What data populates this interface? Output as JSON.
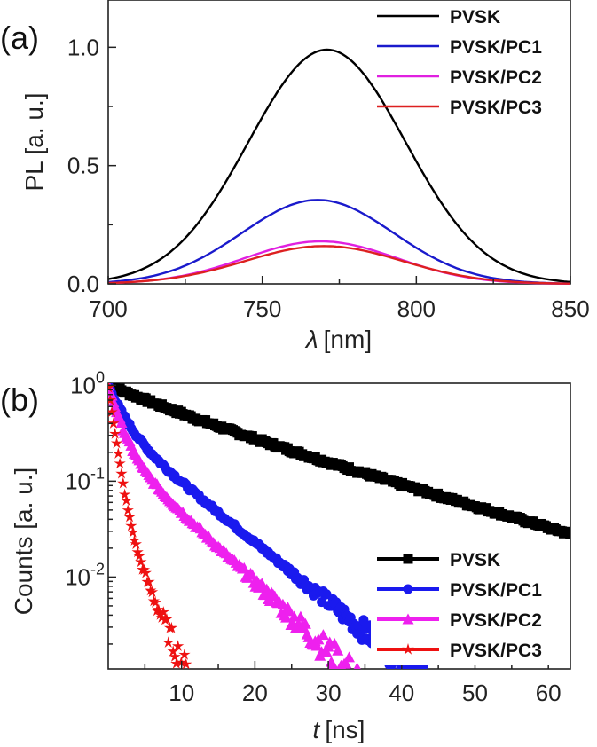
{
  "chart_data": [
    {
      "panel_label": "(a)",
      "type": "line",
      "xlabel_symbol": "λ",
      "xlabel_unit": "[nm]",
      "ylabel": "PL [a. u.]",
      "xlim": [
        700,
        850
      ],
      "ylim": [
        0,
        1.2
      ],
      "xticks": [
        700,
        750,
        800,
        850
      ],
      "yticks": [
        "0.0",
        "0.5",
        "1.0"
      ],
      "ytick_values": [
        0,
        0.5,
        1.0
      ],
      "legend_position": "top-right",
      "series": [
        {
          "name": "PVSK",
          "color": "#000000",
          "peak": 0.99,
          "center": 771,
          "fwhm": 60
        },
        {
          "name": "PVSK/PC1",
          "color": "#1a1acc",
          "peak": 0.355,
          "center": 768,
          "fwhm": 58
        },
        {
          "name": "PVSK/PC2",
          "color": "#e020e0",
          "peak": 0.18,
          "center": 769,
          "fwhm": 58
        },
        {
          "name": "PVSK/PC3",
          "color": "#dd2020",
          "peak": 0.16,
          "center": 770,
          "fwhm": 60
        }
      ]
    },
    {
      "panel_label": "(b)",
      "type": "scatter",
      "yscale": "log",
      "xlabel_symbol": "t",
      "xlabel_unit": "[ns]",
      "ylabel": "Counts [a. u.]",
      "xlim": [
        0,
        63
      ],
      "ylim": [
        0.0011,
        1.05
      ],
      "xticks": [
        10,
        20,
        30,
        40,
        50,
        60
      ],
      "yticks": [
        {
          "base": "10",
          "exp": "0",
          "value": 1
        },
        {
          "base": "10",
          "exp": "-1",
          "value": 0.1
        },
        {
          "base": "10",
          "exp": "-2",
          "value": 0.01
        }
      ],
      "legend_position": "bottom-right",
      "series": [
        {
          "name": "PVSK",
          "color": "#000000",
          "marker": "square",
          "t_end": 63,
          "tau1": 9,
          "tau2": 20,
          "frac1": 0.35
        },
        {
          "name": "PVSK/PC1",
          "color": "#1a1aee",
          "marker": "circle",
          "t_end": 46,
          "tau1": 1.8,
          "tau2": 7,
          "frac1": 0.6
        },
        {
          "name": "PVSK/PC2",
          "color": "#ee20ee",
          "marker": "triangle",
          "t_end": 38,
          "tau1": 1.4,
          "tau2": 6,
          "frac1": 0.75
        },
        {
          "name": "PVSK/PC3",
          "color": "#ee1111",
          "marker": "star",
          "t_end": 12,
          "tau1": 0.75,
          "tau2": 2.5,
          "frac1": 0.93
        }
      ]
    }
  ]
}
